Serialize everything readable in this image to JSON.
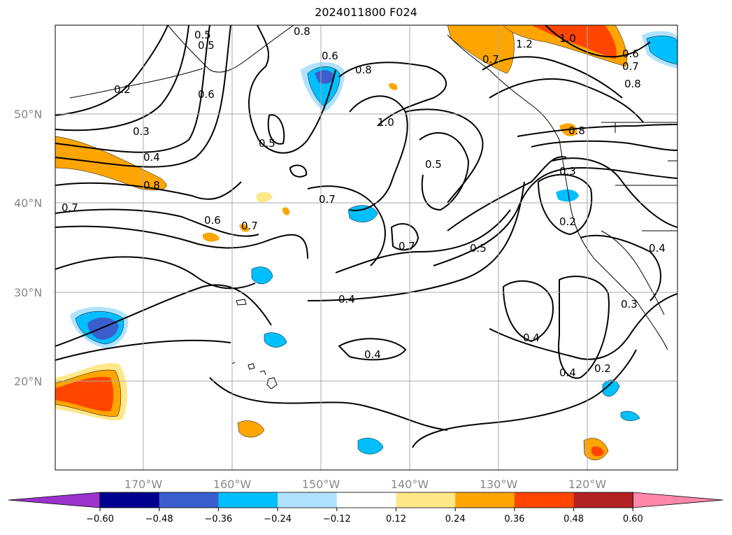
{
  "title": "2024011800 F024",
  "lat_labels": [
    "50°N",
    "40°N",
    "30°N",
    "20°N"
  ],
  "lon_labels": [
    "170°W",
    "160°W",
    "150°W",
    "140°W",
    "130°W",
    "120°W"
  ],
  "colorbar": {
    "ticks": [
      "−0.60",
      "−0.48",
      "−0.36",
      "−0.24",
      "−0.12",
      "0.12",
      "0.24",
      "0.36",
      "0.48",
      "0.60"
    ],
    "colors": [
      "#9933cc",
      "#000090",
      "#3a5fcd",
      "#00bfff",
      "#b0e2ff",
      "#ffffff",
      "#ffe88a",
      "#ffa500",
      "#ff4500",
      "#b22222",
      "#ff88aa"
    ]
  },
  "contour_labels": [
    "0.2",
    "0.3",
    "0.4",
    "0.5",
    "0.6",
    "0.7",
    "0.8",
    "1.0",
    "1.2",
    "0.6",
    "0.8",
    "0.5",
    "0.7",
    "0.6",
    "0.7",
    "0.4",
    "0.4",
    "0.5",
    "0.7",
    "0.8",
    "0.6",
    "0.7",
    "0.8",
    "1.0",
    "0.5",
    "0.3",
    "0.2",
    "0.4",
    "0.3",
    "0.4",
    "0.4",
    "0.2",
    "0.7",
    "0.8",
    "0.5"
  ]
}
